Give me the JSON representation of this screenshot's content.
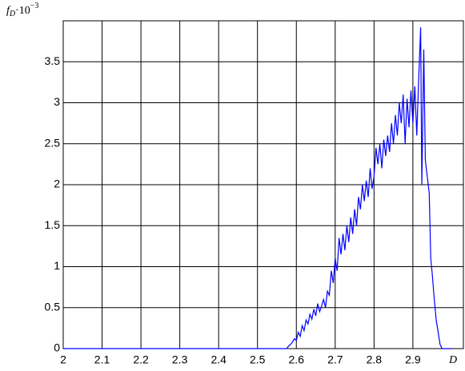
{
  "chart_data": {
    "type": "line",
    "ylabel": {
      "symbol": "f",
      "subscript": "D",
      "factor": "·10",
      "exponent": "−3"
    },
    "xlabel": "D",
    "x": [
      2.0,
      2.575,
      2.58,
      2.585,
      2.59,
      2.595,
      2.6,
      2.605,
      2.61,
      2.615,
      2.62,
      2.625,
      2.63,
      2.635,
      2.64,
      2.645,
      2.65,
      2.655,
      2.66,
      2.665,
      2.67,
      2.675,
      2.68,
      2.685,
      2.69,
      2.695,
      2.7,
      2.705,
      2.71,
      2.715,
      2.72,
      2.725,
      2.73,
      2.735,
      2.74,
      2.745,
      2.75,
      2.755,
      2.76,
      2.765,
      2.77,
      2.775,
      2.78,
      2.785,
      2.79,
      2.795,
      2.8,
      2.805,
      2.81,
      2.815,
      2.82,
      2.825,
      2.83,
      2.835,
      2.84,
      2.845,
      2.85,
      2.855,
      2.86,
      2.865,
      2.87,
      2.875,
      2.88,
      2.885,
      2.89,
      2.895,
      2.9,
      2.905,
      2.91,
      2.915,
      2.92,
      2.923,
      2.928,
      2.932,
      2.937,
      2.942,
      2.946,
      2.95,
      2.955,
      2.96,
      2.965,
      2.97,
      2.975,
      3.0
    ],
    "series": [
      {
        "color": "#0000ff",
        "values": [
          0,
          0,
          0.03,
          0.05,
          0.08,
          0.12,
          0.1,
          0.2,
          0.15,
          0.28,
          0.22,
          0.35,
          0.3,
          0.42,
          0.36,
          0.48,
          0.4,
          0.55,
          0.45,
          0.52,
          0.6,
          0.5,
          0.7,
          0.65,
          0.95,
          0.8,
          1.1,
          0.95,
          1.35,
          1.15,
          1.4,
          1.2,
          1.5,
          1.3,
          1.6,
          1.4,
          1.7,
          1.5,
          1.85,
          1.7,
          2.0,
          1.8,
          2.05,
          1.85,
          2.2,
          1.95,
          2.1,
          2.45,
          2.25,
          2.5,
          2.2,
          2.55,
          2.35,
          2.6,
          2.4,
          2.75,
          2.5,
          2.85,
          2.6,
          3.0,
          2.75,
          3.1,
          2.5,
          3.05,
          2.7,
          3.15,
          2.75,
          3.2,
          2.6,
          3.3,
          3.92,
          2.0,
          3.65,
          2.3,
          2.1,
          1.9,
          1.1,
          0.9,
          0.6,
          0.35,
          0.2,
          0.05,
          0,
          0
        ]
      }
    ],
    "xlim": [
      2,
      3.03
    ],
    "xticks": [
      2,
      2.1,
      2.2,
      2.3,
      2.4,
      2.5,
      2.6,
      2.7,
      2.8,
      2.9
    ],
    "ylim": [
      0,
      4
    ],
    "yticks": [
      0,
      0.5,
      1,
      1.5,
      2,
      2.5,
      3,
      3.5
    ],
    "grid": true
  }
}
